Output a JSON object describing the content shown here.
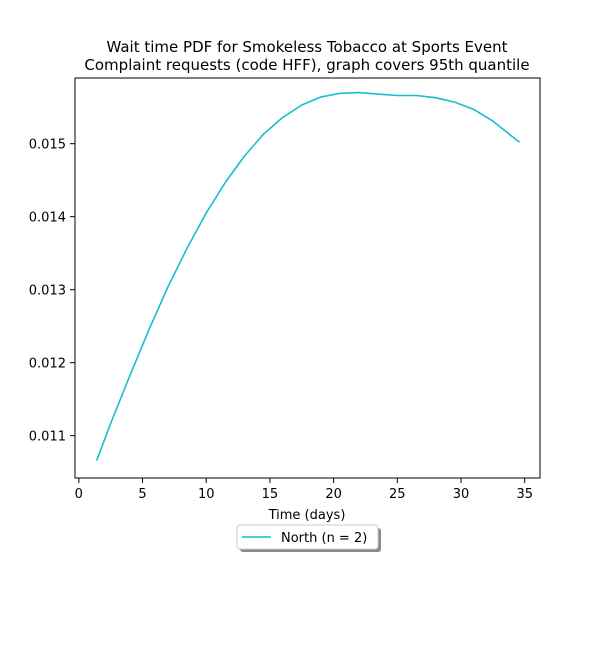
{
  "chart_data": {
    "type": "line",
    "title_line1": "Wait time PDF for Smokeless Tobacco at Sports Event",
    "title_line2": "Complaint  requests (code HFF), graph covers 95th quantile",
    "xlabel": "Time (days)",
    "ylabel": "",
    "xlim": [
      -0.3,
      36.2
    ],
    "ylim": [
      0.01042,
      0.0159
    ],
    "x_ticks": [
      0,
      5,
      10,
      15,
      20,
      25,
      30,
      35
    ],
    "y_ticks": [
      0.011,
      0.012,
      0.013,
      0.014,
      0.015
    ],
    "y_tick_labels": [
      "0.011",
      "0.012",
      "0.013",
      "0.014",
      "0.015"
    ],
    "grid": false,
    "legend_position": "below-center",
    "series": [
      {
        "name": "North (n = 2)",
        "color": "#17becf",
        "x": [
          1.4,
          2.5,
          4.0,
          5.5,
          7.0,
          8.5,
          10.0,
          11.5,
          13.0,
          14.5,
          16.0,
          17.5,
          19.0,
          20.5,
          22.0,
          23.5,
          25.0,
          26.5,
          28.0,
          29.5,
          31.0,
          32.5,
          34.0,
          34.6
        ],
        "y": [
          0.01066,
          0.01117,
          0.01182,
          0.01245,
          0.01304,
          0.01357,
          0.01405,
          0.01447,
          0.01483,
          0.01513,
          0.01536,
          0.01553,
          0.01564,
          0.01569,
          0.0157,
          0.01568,
          0.01566,
          0.01566,
          0.01563,
          0.01557,
          0.01547,
          0.01531,
          0.0151,
          0.01502
        ]
      }
    ]
  }
}
